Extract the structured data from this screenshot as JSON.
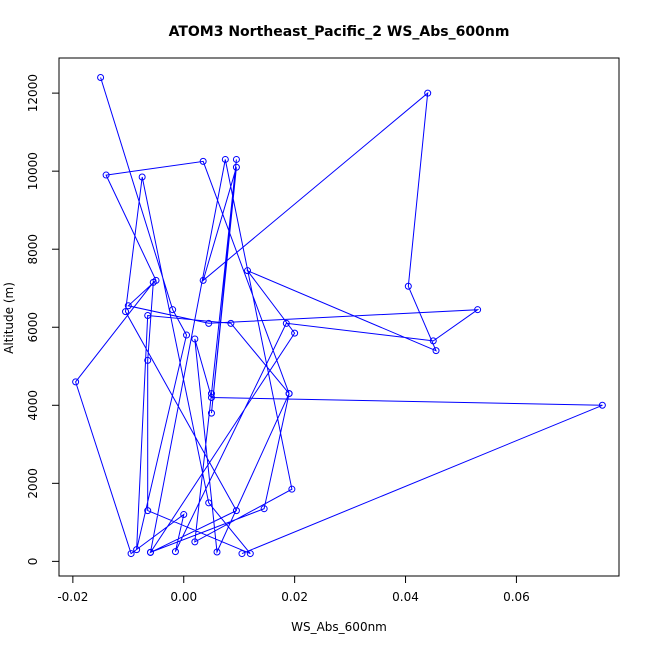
{
  "chart_data": {
    "type": "line",
    "title": "ATOM3 Northeast_Pacific_2 WS_Abs_600nm",
    "xlabel": "WS_Abs_600nm",
    "ylabel": "Altitude (m)",
    "xlim": [
      -0.0225,
      0.0785
    ],
    "ylim": [
      -375,
      12900
    ],
    "xticks": [
      -0.02,
      0.0,
      0.02,
      0.04,
      0.06
    ],
    "xtick_labels": [
      "-0.02",
      "0.00",
      "0.02",
      "0.04",
      "0.06"
    ],
    "yticks": [
      0,
      2000,
      4000,
      6000,
      8000,
      10000,
      12000
    ],
    "ytick_labels": [
      "0",
      "2000",
      "4000",
      "6000",
      "8000",
      "10000",
      "12000"
    ],
    "grid": false,
    "color": "#0000ff",
    "series": [
      {
        "x": [
          -0.015,
          -0.002,
          0.0005,
          -0.0085,
          -0.0065,
          0.0085,
          0.019,
          0.0035,
          -0.014,
          -0.005,
          -0.01,
          0.0045,
          0.053,
          0.045,
          0.0185,
          -0.0015,
          0.0,
          -0.0095,
          -0.0195,
          -0.0055,
          -0.0065,
          -0.0065,
          0.012,
          0.0045,
          -0.0075,
          -0.0105,
          0.0095,
          -0.006,
          0.0075,
          0.0195,
          0.002,
          0.005,
          0.0095,
          0.005,
          0.0095,
          0.0035,
          0.044,
          0.0405,
          0.0455,
          0.0115,
          0.02,
          -0.006,
          0.0145,
          0.019,
          0.006,
          0.002,
          0.005,
          0.0755,
          0.0105
        ],
        "y": [
          12400,
          6450,
          5800,
          300,
          6300,
          6100,
          4300,
          10250,
          9900,
          7200,
          6550,
          6100,
          6450,
          5650,
          6100,
          250,
          1200,
          200,
          4600,
          7150,
          5150,
          1300,
          200,
          1500,
          9850,
          6400,
          1300,
          230,
          10300,
          1850,
          500,
          4300,
          10300,
          3800,
          10100,
          7200,
          12000,
          7050,
          5400,
          7450,
          5850,
          230,
          1350,
          4300,
          240,
          5700,
          4200,
          4000,
          200
        ]
      }
    ]
  }
}
